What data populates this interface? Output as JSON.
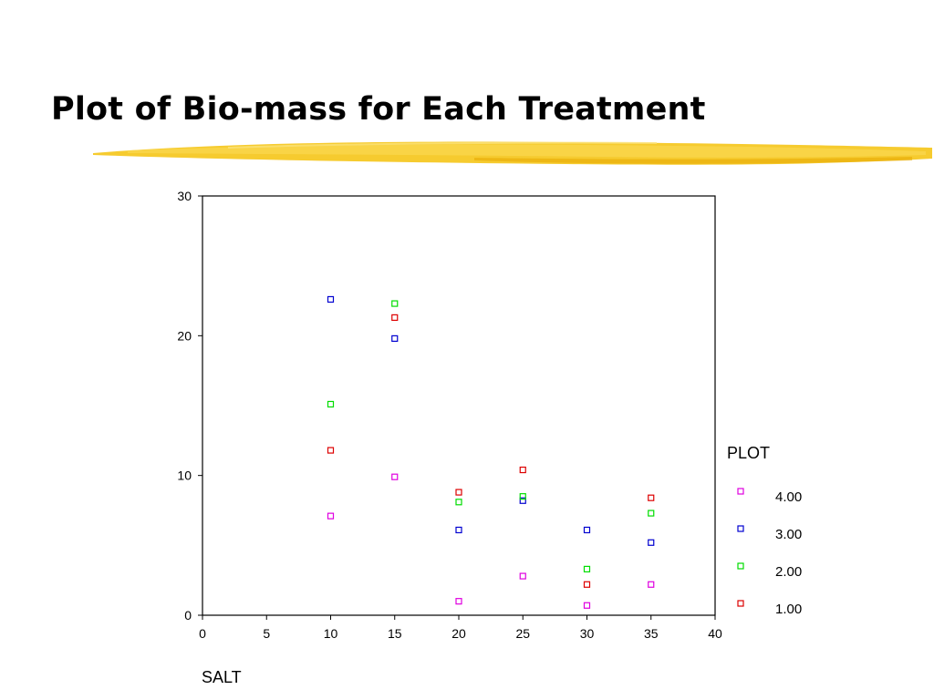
{
  "slide": {
    "title": "Plot of Bio-mass for Each Treatment",
    "accent_color": "#f5c518"
  },
  "chart_data": {
    "type": "scatter",
    "title": "",
    "xlabel": "SALT",
    "ylabel": "",
    "xlim": [
      0,
      40
    ],
    "ylim": [
      0,
      30
    ],
    "x_ticks": [
      "0",
      "5",
      "10",
      "15",
      "20",
      "25",
      "30",
      "35",
      "40"
    ],
    "y_ticks": [
      "0",
      "10",
      "20",
      "30"
    ],
    "x_tick_values": [
      0,
      5,
      10,
      15,
      20,
      25,
      30,
      35,
      40
    ],
    "y_tick_values": [
      0,
      10,
      20,
      30
    ],
    "grid": false,
    "legend": {
      "title": "PLOT",
      "placement": "right"
    },
    "series": [
      {
        "name": "4.00",
        "color": "#e000e0",
        "points": [
          [
            10,
            7.1
          ],
          [
            15,
            9.9
          ],
          [
            20,
            1.0
          ],
          [
            25,
            2.8
          ],
          [
            30,
            0.7
          ],
          [
            35,
            2.2
          ]
        ]
      },
      {
        "name": "3.00",
        "color": "#0000d0",
        "points": [
          [
            10,
            22.6
          ],
          [
            15,
            19.8
          ],
          [
            20,
            6.1
          ],
          [
            25,
            8.2
          ],
          [
            30,
            6.1
          ],
          [
            35,
            5.2
          ]
        ]
      },
      {
        "name": "2.00",
        "color": "#00dd00",
        "points": [
          [
            10,
            15.1
          ],
          [
            15,
            22.3
          ],
          [
            20,
            8.1
          ],
          [
            25,
            8.5
          ],
          [
            30,
            3.3
          ],
          [
            35,
            7.3
          ]
        ]
      },
      {
        "name": "1.00",
        "color": "#dd0000",
        "points": [
          [
            10,
            11.8
          ],
          [
            15,
            21.3
          ],
          [
            20,
            8.8
          ],
          [
            25,
            10.4
          ],
          [
            30,
            2.2
          ],
          [
            35,
            8.4
          ]
        ]
      }
    ]
  }
}
